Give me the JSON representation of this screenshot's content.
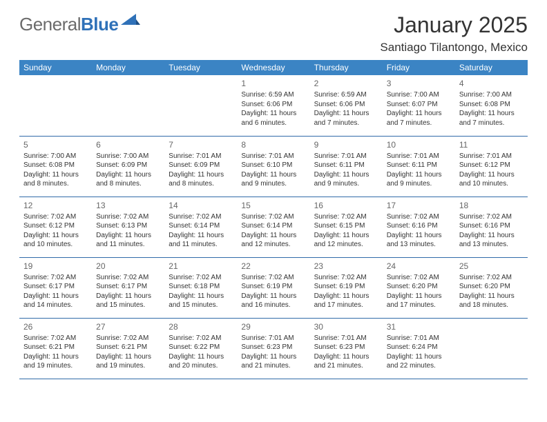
{
  "logo": {
    "part1": "General",
    "part2": "Blue"
  },
  "header": {
    "title": "January 2025",
    "location": "Santiago Tilantongo, Mexico"
  },
  "colors": {
    "header_bg": "#3b84c4",
    "header_fg": "#ffffff",
    "row_border": "#2f6aa8",
    "text": "#333333",
    "daynum": "#666666",
    "logo_gray": "#6b6b6b",
    "logo_blue": "#2f71b8"
  },
  "fonts": {
    "title_size": 32,
    "location_size": 17,
    "th_size": 12,
    "cell_size": 10,
    "daynum_size": 12
  },
  "weekdays": [
    "Sunday",
    "Monday",
    "Tuesday",
    "Wednesday",
    "Thursday",
    "Friday",
    "Saturday"
  ],
  "weeks": [
    [
      {
        "day": "",
        "lines": [
          "",
          "",
          "",
          ""
        ]
      },
      {
        "day": "",
        "lines": [
          "",
          "",
          "",
          ""
        ]
      },
      {
        "day": "",
        "lines": [
          "",
          "",
          "",
          ""
        ]
      },
      {
        "day": "1",
        "lines": [
          "Sunrise: 6:59 AM",
          "Sunset: 6:06 PM",
          "Daylight: 11 hours",
          "and 6 minutes."
        ]
      },
      {
        "day": "2",
        "lines": [
          "Sunrise: 6:59 AM",
          "Sunset: 6:06 PM",
          "Daylight: 11 hours",
          "and 7 minutes."
        ]
      },
      {
        "day": "3",
        "lines": [
          "Sunrise: 7:00 AM",
          "Sunset: 6:07 PM",
          "Daylight: 11 hours",
          "and 7 minutes."
        ]
      },
      {
        "day": "4",
        "lines": [
          "Sunrise: 7:00 AM",
          "Sunset: 6:08 PM",
          "Daylight: 11 hours",
          "and 7 minutes."
        ]
      }
    ],
    [
      {
        "day": "5",
        "lines": [
          "Sunrise: 7:00 AM",
          "Sunset: 6:08 PM",
          "Daylight: 11 hours",
          "and 8 minutes."
        ]
      },
      {
        "day": "6",
        "lines": [
          "Sunrise: 7:00 AM",
          "Sunset: 6:09 PM",
          "Daylight: 11 hours",
          "and 8 minutes."
        ]
      },
      {
        "day": "7",
        "lines": [
          "Sunrise: 7:01 AM",
          "Sunset: 6:09 PM",
          "Daylight: 11 hours",
          "and 8 minutes."
        ]
      },
      {
        "day": "8",
        "lines": [
          "Sunrise: 7:01 AM",
          "Sunset: 6:10 PM",
          "Daylight: 11 hours",
          "and 9 minutes."
        ]
      },
      {
        "day": "9",
        "lines": [
          "Sunrise: 7:01 AM",
          "Sunset: 6:11 PM",
          "Daylight: 11 hours",
          "and 9 minutes."
        ]
      },
      {
        "day": "10",
        "lines": [
          "Sunrise: 7:01 AM",
          "Sunset: 6:11 PM",
          "Daylight: 11 hours",
          "and 9 minutes."
        ]
      },
      {
        "day": "11",
        "lines": [
          "Sunrise: 7:01 AM",
          "Sunset: 6:12 PM",
          "Daylight: 11 hours",
          "and 10 minutes."
        ]
      }
    ],
    [
      {
        "day": "12",
        "lines": [
          "Sunrise: 7:02 AM",
          "Sunset: 6:12 PM",
          "Daylight: 11 hours",
          "and 10 minutes."
        ]
      },
      {
        "day": "13",
        "lines": [
          "Sunrise: 7:02 AM",
          "Sunset: 6:13 PM",
          "Daylight: 11 hours",
          "and 11 minutes."
        ]
      },
      {
        "day": "14",
        "lines": [
          "Sunrise: 7:02 AM",
          "Sunset: 6:14 PM",
          "Daylight: 11 hours",
          "and 11 minutes."
        ]
      },
      {
        "day": "15",
        "lines": [
          "Sunrise: 7:02 AM",
          "Sunset: 6:14 PM",
          "Daylight: 11 hours",
          "and 12 minutes."
        ]
      },
      {
        "day": "16",
        "lines": [
          "Sunrise: 7:02 AM",
          "Sunset: 6:15 PM",
          "Daylight: 11 hours",
          "and 12 minutes."
        ]
      },
      {
        "day": "17",
        "lines": [
          "Sunrise: 7:02 AM",
          "Sunset: 6:16 PM",
          "Daylight: 11 hours",
          "and 13 minutes."
        ]
      },
      {
        "day": "18",
        "lines": [
          "Sunrise: 7:02 AM",
          "Sunset: 6:16 PM",
          "Daylight: 11 hours",
          "and 13 minutes."
        ]
      }
    ],
    [
      {
        "day": "19",
        "lines": [
          "Sunrise: 7:02 AM",
          "Sunset: 6:17 PM",
          "Daylight: 11 hours",
          "and 14 minutes."
        ]
      },
      {
        "day": "20",
        "lines": [
          "Sunrise: 7:02 AM",
          "Sunset: 6:17 PM",
          "Daylight: 11 hours",
          "and 15 minutes."
        ]
      },
      {
        "day": "21",
        "lines": [
          "Sunrise: 7:02 AM",
          "Sunset: 6:18 PM",
          "Daylight: 11 hours",
          "and 15 minutes."
        ]
      },
      {
        "day": "22",
        "lines": [
          "Sunrise: 7:02 AM",
          "Sunset: 6:19 PM",
          "Daylight: 11 hours",
          "and 16 minutes."
        ]
      },
      {
        "day": "23",
        "lines": [
          "Sunrise: 7:02 AM",
          "Sunset: 6:19 PM",
          "Daylight: 11 hours",
          "and 17 minutes."
        ]
      },
      {
        "day": "24",
        "lines": [
          "Sunrise: 7:02 AM",
          "Sunset: 6:20 PM",
          "Daylight: 11 hours",
          "and 17 minutes."
        ]
      },
      {
        "day": "25",
        "lines": [
          "Sunrise: 7:02 AM",
          "Sunset: 6:20 PM",
          "Daylight: 11 hours",
          "and 18 minutes."
        ]
      }
    ],
    [
      {
        "day": "26",
        "lines": [
          "Sunrise: 7:02 AM",
          "Sunset: 6:21 PM",
          "Daylight: 11 hours",
          "and 19 minutes."
        ]
      },
      {
        "day": "27",
        "lines": [
          "Sunrise: 7:02 AM",
          "Sunset: 6:21 PM",
          "Daylight: 11 hours",
          "and 19 minutes."
        ]
      },
      {
        "day": "28",
        "lines": [
          "Sunrise: 7:02 AM",
          "Sunset: 6:22 PM",
          "Daylight: 11 hours",
          "and 20 minutes."
        ]
      },
      {
        "day": "29",
        "lines": [
          "Sunrise: 7:01 AM",
          "Sunset: 6:23 PM",
          "Daylight: 11 hours",
          "and 21 minutes."
        ]
      },
      {
        "day": "30",
        "lines": [
          "Sunrise: 7:01 AM",
          "Sunset: 6:23 PM",
          "Daylight: 11 hours",
          "and 21 minutes."
        ]
      },
      {
        "day": "31",
        "lines": [
          "Sunrise: 7:01 AM",
          "Sunset: 6:24 PM",
          "Daylight: 11 hours",
          "and 22 minutes."
        ]
      },
      {
        "day": "",
        "lines": [
          "",
          "",
          "",
          ""
        ]
      }
    ]
  ]
}
